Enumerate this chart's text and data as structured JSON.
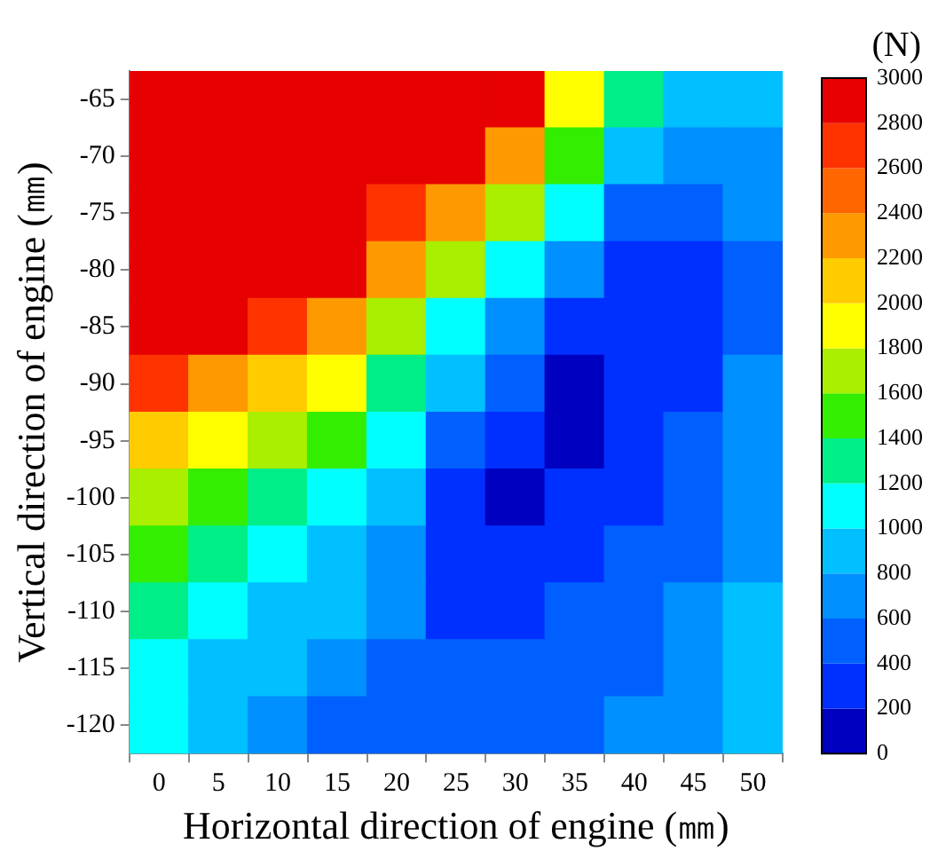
{
  "chart_data": {
    "type": "heatmap",
    "xlabel": "Horizontal direction of engine (㎜)",
    "ylabel": "Vertical direction of engine (㎜)",
    "clabel": "(N)",
    "categories": [
      "0",
      "5",
      "10",
      "15",
      "20",
      "25",
      "30",
      "35",
      "40",
      "45",
      "50"
    ],
    "y_categories": [
      "-65",
      "-70",
      "-75",
      "-80",
      "-85",
      "-90",
      "-95",
      "-100",
      "-105",
      "-110",
      "-115",
      "-120"
    ],
    "cells": [
      [
        3000,
        3000,
        3000,
        3000,
        3000,
        3000,
        2900,
        1950,
        1350,
        950,
        850
      ],
      [
        3000,
        3000,
        3000,
        3000,
        3000,
        2850,
        2300,
        1450,
        900,
        620,
        700
      ],
      [
        3000,
        3000,
        3000,
        3000,
        2750,
        2300,
        1600,
        1000,
        580,
        500,
        620
      ],
      [
        3000,
        3000,
        3000,
        2800,
        2200,
        1700,
        1100,
        650,
        380,
        330,
        580
      ],
      [
        3000,
        2900,
        2650,
        2300,
        1750,
        1150,
        700,
        380,
        320,
        340,
        590
      ],
      [
        2750,
        2350,
        2150,
        1850,
        1350,
        800,
        450,
        150,
        240,
        370,
        600
      ],
      [
        2150,
        1900,
        1700,
        1450,
        1050,
        480,
        250,
        150,
        300,
        420,
        620
      ],
      [
        1750,
        1550,
        1350,
        1150,
        880,
        360,
        180,
        260,
        360,
        480,
        680
      ],
      [
        1500,
        1300,
        1100,
        950,
        740,
        330,
        280,
        330,
        420,
        540,
        760
      ],
      [
        1300,
        1150,
        950,
        800,
        620,
        350,
        330,
        400,
        480,
        600,
        830
      ],
      [
        1100,
        950,
        820,
        680,
        560,
        420,
        410,
        460,
        540,
        670,
        880
      ],
      [
        1020,
        880,
        740,
        580,
        520,
        480,
        470,
        520,
        600,
        740,
        920
      ]
    ],
    "clim": [
      0,
      3000
    ],
    "cticks": [
      0,
      200,
      400,
      600,
      800,
      1000,
      1200,
      1400,
      1600,
      1800,
      2000,
      2200,
      2400,
      2600,
      2800,
      3000
    ]
  }
}
